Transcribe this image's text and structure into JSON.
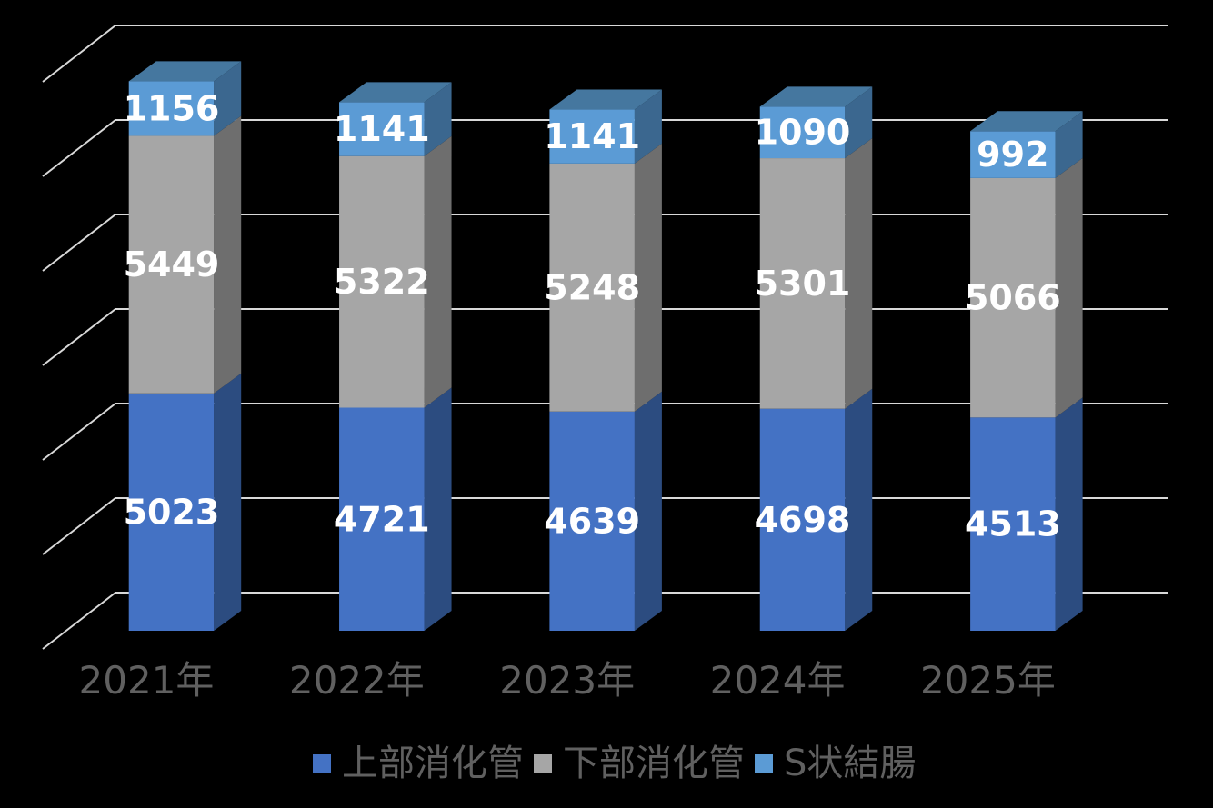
{
  "background_color": "#000000",
  "chart_data": {
    "type": "bar",
    "subtype": "3d-stacked-column",
    "title": "",
    "categories": [
      "2021年",
      "2022年",
      "2023年",
      "2024年",
      "2025年"
    ],
    "series": [
      {
        "name": "上部消化管",
        "values": [
          5023,
          4721,
          4639,
          4698,
          4513
        ],
        "color": "#4472C4",
        "side_color": "#2C4C80"
      },
      {
        "name": "下部消化管",
        "values": [
          5449,
          5322,
          5248,
          5301,
          5066
        ],
        "color": "#A6A6A6",
        "side_color": "#6E6E6E"
      },
      {
        "name": "S状結腸",
        "values": [
          1156,
          1141,
          1141,
          1090,
          992
        ],
        "color": "#5B9BD5",
        "side_color": "#3B678F",
        "top_color": "#45779F"
      }
    ],
    "value_label_color": "#FFFFFF",
    "text_color": "#606060",
    "gridline_color": "#D8D8D8",
    "axis": {
      "y_min": 0,
      "y_max": 12000,
      "y_step": 2000,
      "y_tick_labels_visible": false,
      "gridlines_visible": true
    },
    "legend": {
      "position": "bottom",
      "items": [
        "上部消化管",
        "下部消化管",
        "S状結腸"
      ]
    }
  }
}
